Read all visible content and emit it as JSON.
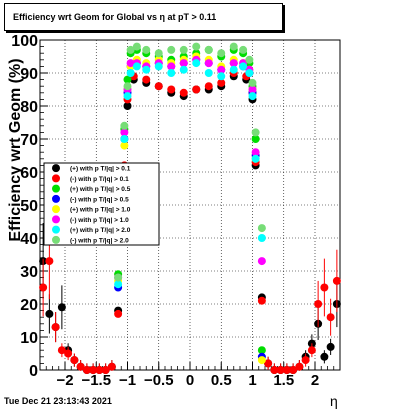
{
  "title": "Efficiency wrt Geom for Global vs   η at pT > 0.11",
  "footer": "Tue Dec 21 23:13:43 2021",
  "chart_data": {
    "type": "scatter",
    "title": "Efficiency wrt Geom for Global vs   η at pT > 0.11",
    "xlabel": "η",
    "ylabel": "Efficiency wrt Geom (%)",
    "xlim": [
      -2.4,
      2.4
    ],
    "ylim": [
      0,
      100
    ],
    "x_ticks": [
      -2,
      -1.5,
      -1,
      -0.5,
      0,
      0.5,
      1,
      1.5,
      2
    ],
    "x_tick_labels": [
      "−2",
      "−1.5",
      "−1",
      "−0.5",
      "0",
      "0.5",
      "1",
      "1.5",
      "2"
    ],
    "y_ticks": [
      0,
      10,
      20,
      30,
      40,
      50,
      60,
      70,
      80,
      90,
      100
    ],
    "y_tick_labels": [
      "0",
      "10",
      "20",
      "30",
      "40",
      "50",
      "60",
      "70",
      "80",
      "90",
      "100"
    ],
    "grid": true,
    "legend_position": "middle-left",
    "series": [
      {
        "name": "(+) with p T/|q| > 0.1",
        "color": "#000000",
        "x": [
          -2.35,
          -2.25,
          -2.15,
          -2.05,
          -1.95,
          -1.85,
          -1.75,
          -1.65,
          -1.55,
          -1.45,
          -1.35,
          -1.25,
          -1.15,
          -1.05,
          -1.0,
          -0.9,
          -0.7,
          -0.5,
          -0.3,
          -0.1,
          0.1,
          0.3,
          0.5,
          0.7,
          0.9,
          1.0,
          1.05,
          1.15,
          1.25,
          1.35,
          1.45,
          1.55,
          1.65,
          1.75,
          1.85,
          1.95,
          2.05,
          2.15,
          2.25,
          2.35
        ],
        "y": [
          33,
          17,
          13,
          19,
          6,
          3,
          1,
          0,
          0,
          0,
          0,
          1,
          18,
          58,
          80,
          88,
          87,
          86,
          84,
          83,
          85,
          85,
          86,
          89,
          88,
          82,
          62,
          22,
          2,
          0,
          0,
          0,
          0,
          1,
          4,
          8,
          14,
          4,
          7,
          20
        ]
      },
      {
        "name": "(-) with p T/|q| > 0.1",
        "color": "#ff0000",
        "x": [
          -2.35,
          -2.25,
          -2.15,
          -2.05,
          -1.95,
          -1.85,
          -1.75,
          -1.65,
          -1.55,
          -1.45,
          -1.35,
          -1.25,
          -1.15,
          -1.05,
          -1.0,
          -0.9,
          -0.7,
          -0.5,
          -0.3,
          -0.1,
          0.1,
          0.3,
          0.5,
          0.7,
          0.9,
          1.0,
          1.05,
          1.15,
          1.25,
          1.35,
          1.45,
          1.55,
          1.65,
          1.75,
          1.85,
          1.95,
          2.05,
          2.15,
          2.25,
          2.35
        ],
        "y": [
          25,
          33,
          13,
          6,
          5,
          3,
          1,
          0,
          0,
          0,
          0,
          1,
          17,
          62,
          82,
          89,
          88,
          86,
          85,
          84,
          85,
          86,
          87,
          90,
          89,
          84,
          63,
          21,
          2,
          0,
          0,
          0,
          0,
          1,
          3,
          6,
          20,
          25,
          16,
          27
        ]
      },
      {
        "name": "(+) with p T/|q| > 0.5",
        "color": "#00dd00",
        "x": [
          -1.15,
          -1.05,
          -1.0,
          -0.95,
          -0.85,
          -0.7,
          -0.5,
          -0.3,
          -0.1,
          0.1,
          0.3,
          0.5,
          0.7,
          0.85,
          0.95,
          1.0,
          1.05,
          1.15
        ],
        "y": [
          29,
          73,
          88,
          96,
          97,
          96,
          95,
          94,
          95,
          96,
          97,
          95,
          97,
          96,
          93,
          86,
          70,
          6
        ]
      },
      {
        "name": "(-) with p T/|q| > 0.5",
        "color": "#0000ff",
        "x": [
          -1.15,
          -1.05,
          -1.0,
          -0.95,
          -0.85,
          -0.7,
          -0.5,
          -0.3,
          -0.1,
          0.1,
          0.3,
          0.5,
          0.7,
          0.85,
          0.95,
          1.0,
          1.05,
          1.15
        ],
        "y": [
          25,
          70,
          84,
          92,
          93,
          92,
          93,
          92,
          93,
          94,
          93,
          91,
          93,
          92,
          90,
          84,
          65,
          4
        ]
      },
      {
        "name": "(+) with p T/|q| > 1.0",
        "color": "#ffff00",
        "x": [
          -1.15,
          -1.05,
          -1.0,
          -0.95,
          -0.85,
          -0.7,
          -0.5,
          -0.3,
          -0.1,
          0.1,
          0.3,
          0.5,
          0.7,
          0.85,
          0.95,
          1.0,
          1.05,
          1.15
        ],
        "y": [
          27,
          68,
          85,
          92,
          94,
          93,
          94,
          93,
          94,
          95,
          94,
          92,
          94,
          93,
          91,
          85,
          64,
          3
        ]
      },
      {
        "name": "(-) with p T/|q| > 1.0",
        "color": "#ff00ff",
        "x": [
          -1.15,
          -1.05,
          -1.0,
          -0.95,
          -0.85,
          -0.7,
          -0.5,
          -0.3,
          -0.1,
          0.1,
          0.3,
          0.5,
          0.7,
          0.85,
          0.95,
          1.0,
          1.05,
          1.15
        ],
        "y": [
          28,
          72,
          85,
          93,
          93,
          92,
          93,
          92,
          93,
          94,
          93,
          91,
          93,
          93,
          91,
          85,
          66,
          33
        ]
      },
      {
        "name": "(+) with p T/|q| > 2.0",
        "color": "#00ffff",
        "x": [
          -1.15,
          -1.05,
          -1.0,
          -0.95,
          -0.85,
          -0.7,
          -0.5,
          -0.3,
          -0.1,
          0.1,
          0.3,
          0.5,
          0.7,
          0.85,
          0.95,
          1.0,
          1.05,
          1.15
        ],
        "y": [
          26,
          70,
          83,
          90,
          92,
          91,
          92,
          90,
          91,
          93,
          90,
          89,
          91,
          92,
          90,
          83,
          64,
          40
        ]
      },
      {
        "name": "(-) with p T/|q| > 2.0",
        "color": "#77dd77",
        "x": [
          -1.15,
          -1.05,
          -1.0,
          -0.95,
          -0.85,
          -0.7,
          -0.5,
          -0.3,
          -0.1,
          0.1,
          0.3,
          0.5,
          0.7,
          0.85,
          0.95,
          1.0,
          1.05,
          1.15
        ],
        "y": [
          28,
          74,
          86,
          97,
          98,
          97,
          96,
          97,
          97,
          98,
          97,
          96,
          98,
          97,
          94,
          87,
          72,
          43
        ]
      }
    ]
  }
}
